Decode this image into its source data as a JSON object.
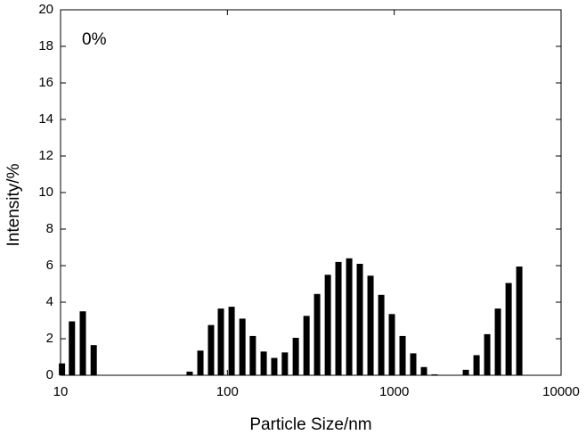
{
  "chart_data": {
    "type": "bar",
    "xscale": "log",
    "xlabel": "Particle Size/nm",
    "ylabel": "Intensity/%",
    "annotation": "0%",
    "color": "#000000",
    "x": [
      10.2,
      11.7,
      13.6,
      15.8,
      59.4,
      68.9,
      79.8,
      91.4,
      106,
      123,
      142,
      165,
      191,
      221,
      257,
      298,
      345,
      400,
      463,
      537,
      622,
      721,
      836,
      968,
      1122,
      1300,
      1507,
      1746,
      2687,
      3114,
      3608,
      4181,
      4849,
      5617
    ],
    "values": [
      0.65,
      2.95,
      3.5,
      1.65,
      0.2,
      1.35,
      2.75,
      3.65,
      3.75,
      3.1,
      2.15,
      1.3,
      0.95,
      1.25,
      2.05,
      3.25,
      4.45,
      5.5,
      6.2,
      6.4,
      6.1,
      5.45,
      4.4,
      3.35,
      2.15,
      1.2,
      0.45,
      0.05,
      0.3,
      1.1,
      2.25,
      3.65,
      5.05,
      5.95
    ],
    "xlim": [
      10,
      10000
    ],
    "xticks": [
      10,
      100,
      1000,
      10000
    ],
    "ylim": [
      0,
      20
    ],
    "yticks": [
      0,
      2,
      4,
      6,
      8,
      10,
      12,
      14,
      16,
      18,
      20
    ]
  }
}
